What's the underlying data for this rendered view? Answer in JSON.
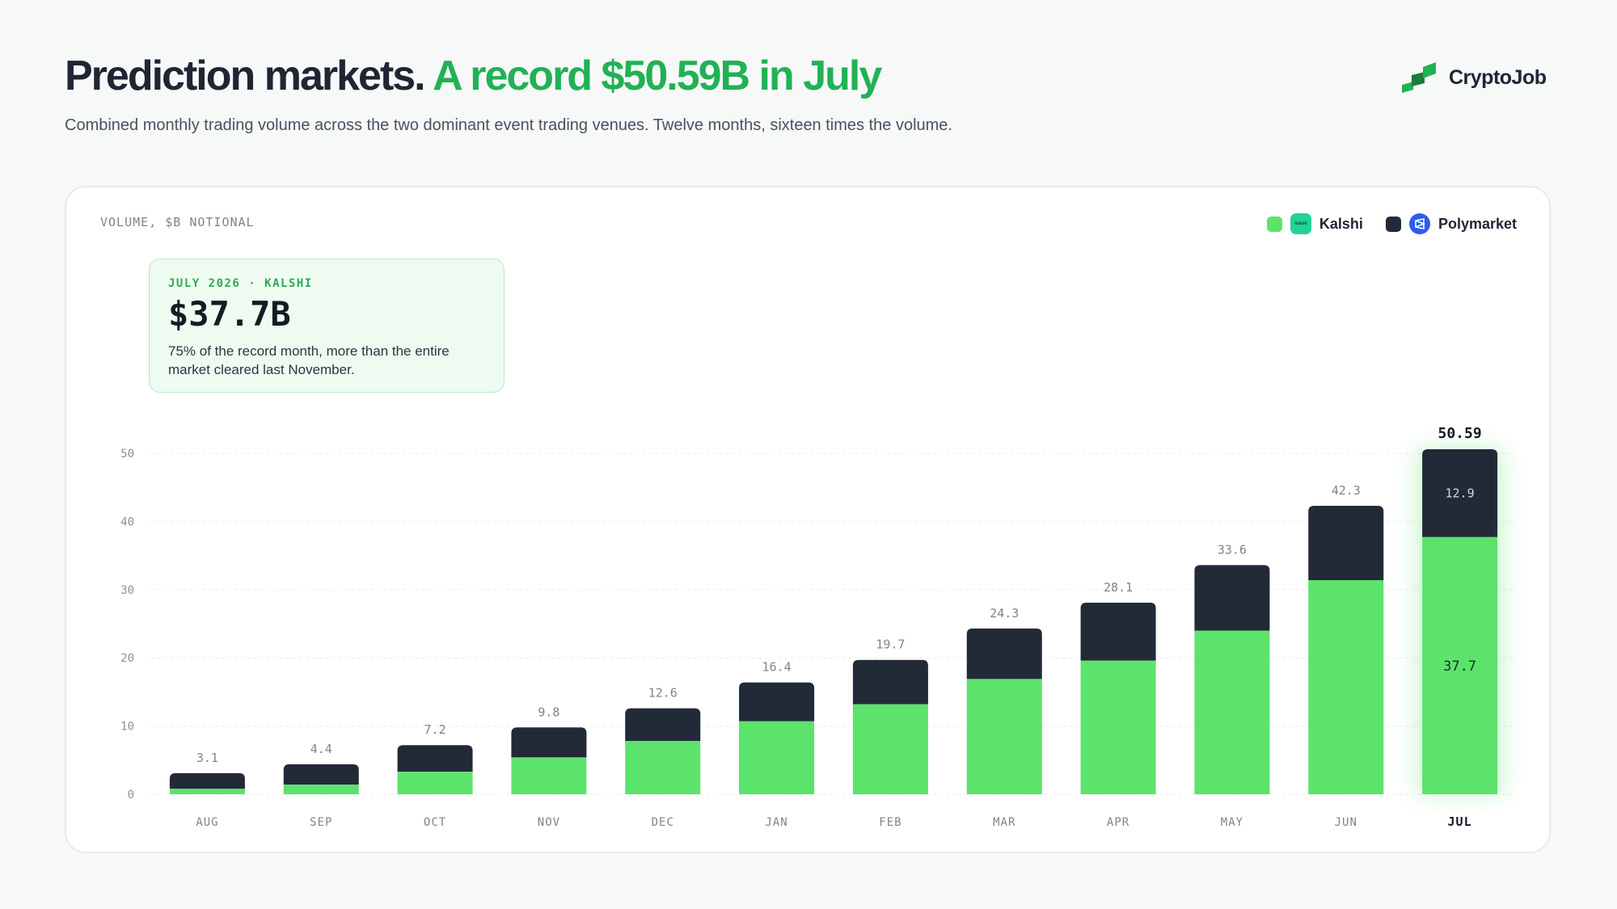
{
  "header": {
    "title_main": "Prediction markets.",
    "title_accent": "A record $50.59B in July",
    "subtitle": "Combined monthly trading volume across the two dominant event trading venues. Twelve months, sixteen times the volume."
  },
  "logo": {
    "name": "CryptoJob",
    "icon": "cryptojob-logo-icon"
  },
  "colors": {
    "accent": "#22b155",
    "kalshi": "#5ce36c",
    "polymarket": "#222a38",
    "kalshi_brand": "#1fd39a",
    "polymarket_brand": "#2d5bf0"
  },
  "legend": {
    "kalshi": {
      "label": "Kalshi",
      "icon": "kalshi-brand-icon",
      "icon_text": "Kalshi"
    },
    "polymarket": {
      "label": "Polymarket",
      "icon": "polymarket-brand-icon"
    }
  },
  "callout": {
    "eyebrow": "JULY 2026 · KALSHI",
    "value": "$37.7B",
    "description": "75% of the record month, more than the entire market cleared last November."
  },
  "chart_data": {
    "type": "bar",
    "stacked": true,
    "ylabel": "VOLUME, $B NOTIONAL",
    "ylim": [
      0,
      50
    ],
    "yticks": [
      0,
      10,
      20,
      30,
      40,
      50
    ],
    "grid": true,
    "legend_position": "top-right",
    "categories": [
      "AUG",
      "SEP",
      "OCT",
      "NOV",
      "DEC",
      "JAN",
      "FEB",
      "MAR",
      "APR",
      "MAY",
      "JUN",
      "JUL"
    ],
    "totals": [
      3.1,
      4.4,
      7.2,
      9.8,
      12.6,
      16.4,
      19.7,
      24.3,
      28.1,
      33.6,
      42.3,
      50.59
    ],
    "total_labels": [
      "3.1",
      "4.4",
      "7.2",
      "9.8",
      "12.6",
      "16.4",
      "19.7",
      "24.3",
      "28.1",
      "33.6",
      "42.3",
      "50.59"
    ],
    "series": [
      {
        "name": "Kalshi",
        "values": [
          0.8,
          1.4,
          3.3,
          5.4,
          7.8,
          10.7,
          13.2,
          16.9,
          19.6,
          24.0,
          31.4,
          37.7
        ]
      },
      {
        "name": "Polymarket",
        "values": [
          2.3,
          3.0,
          3.9,
          4.4,
          4.8,
          5.7,
          6.5,
          7.4,
          8.5,
          9.6,
          10.9,
          12.9
        ]
      }
    ],
    "highlight": {
      "category": "JUL",
      "kalshi_label": "37.7",
      "polymarket_label": "12.9"
    }
  }
}
